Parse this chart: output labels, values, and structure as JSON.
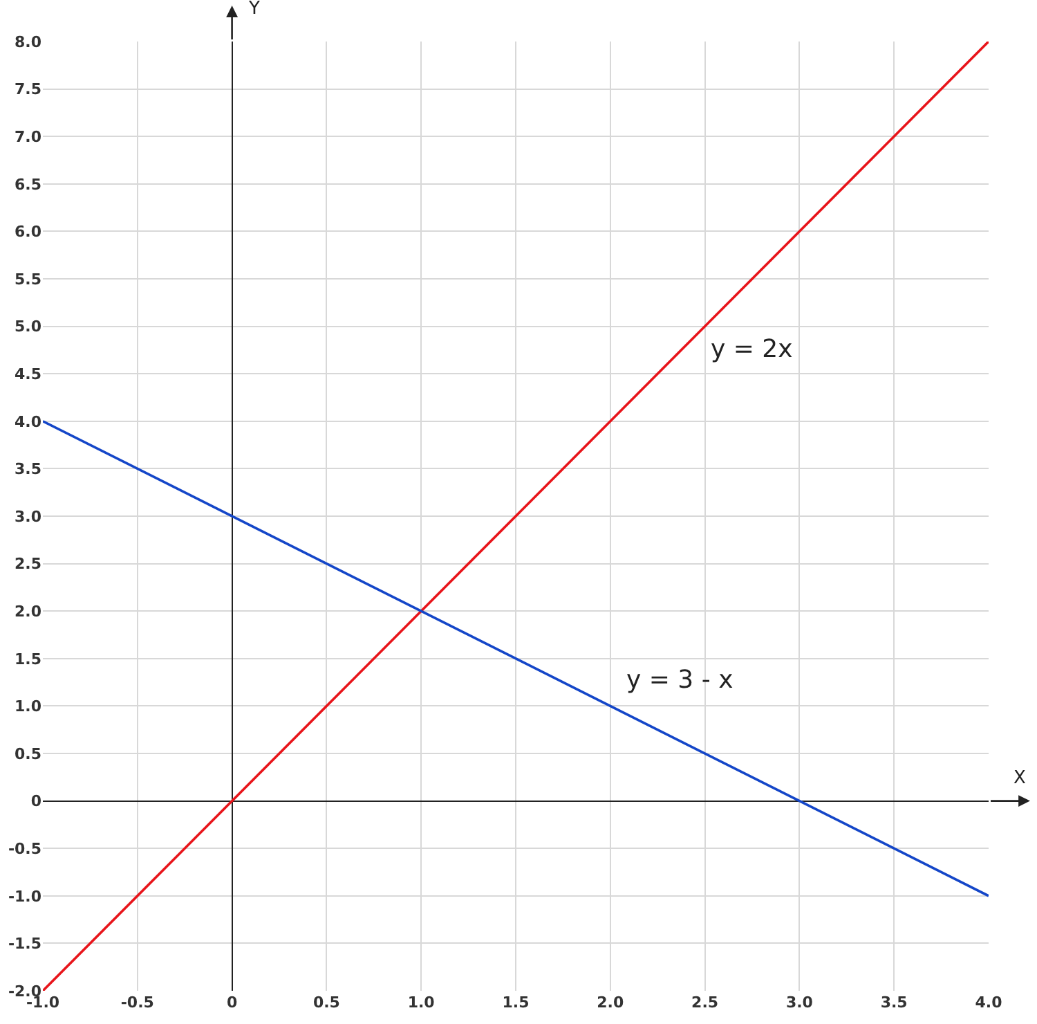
{
  "chart_data": {
    "type": "line",
    "xlabel": "X",
    "ylabel": "Y",
    "x": [
      -1,
      4
    ],
    "series": [
      {
        "color": "#e8141a",
        "values": [
          -2,
          8
        ]
      },
      {
        "color": "#1446c8",
        "values": [
          4,
          -1
        ]
      }
    ],
    "annotations": [
      {
        "text": "y = 2x",
        "x": 2.5,
        "y": 5
      },
      {
        "text": "y = 3 - x",
        "x": 2,
        "y": 1
      }
    ],
    "xlim": [
      -1,
      4
    ],
    "ylim": [
      -2,
      8
    ],
    "xticks": [
      {
        "value": -1,
        "label": "-1.0"
      },
      -0.5,
      0,
      0.5,
      {
        "value": 1,
        "label": "1.0"
      },
      1.5,
      {
        "value": 2,
        "label": "2.0"
      },
      2.5,
      {
        "value": 3,
        "label": "3.0"
      },
      3.5,
      {
        "value": 4,
        "label": "4.0"
      }
    ],
    "yticks": [
      {
        "value": -2,
        "label": "-2.0"
      },
      -1.5,
      {
        "value": -1,
        "label": "-1.0"
      },
      -0.5,
      0,
      0.5,
      {
        "value": 1,
        "label": "1.0"
      },
      1.5,
      {
        "value": 2,
        "label": "2.0"
      },
      2.5,
      {
        "value": 3,
        "label": "3.0"
      },
      3.5,
      {
        "value": 4,
        "label": "4.0"
      },
      4.5,
      {
        "value": 5,
        "label": "5.0"
      },
      5.5,
      {
        "value": 6,
        "label": "6.0"
      },
      6.5,
      {
        "value": 7,
        "label": "7.0"
      },
      7.5,
      {
        "value": 8,
        "label": "8.0"
      }
    ],
    "grid": true,
    "line_style": "solid"
  }
}
